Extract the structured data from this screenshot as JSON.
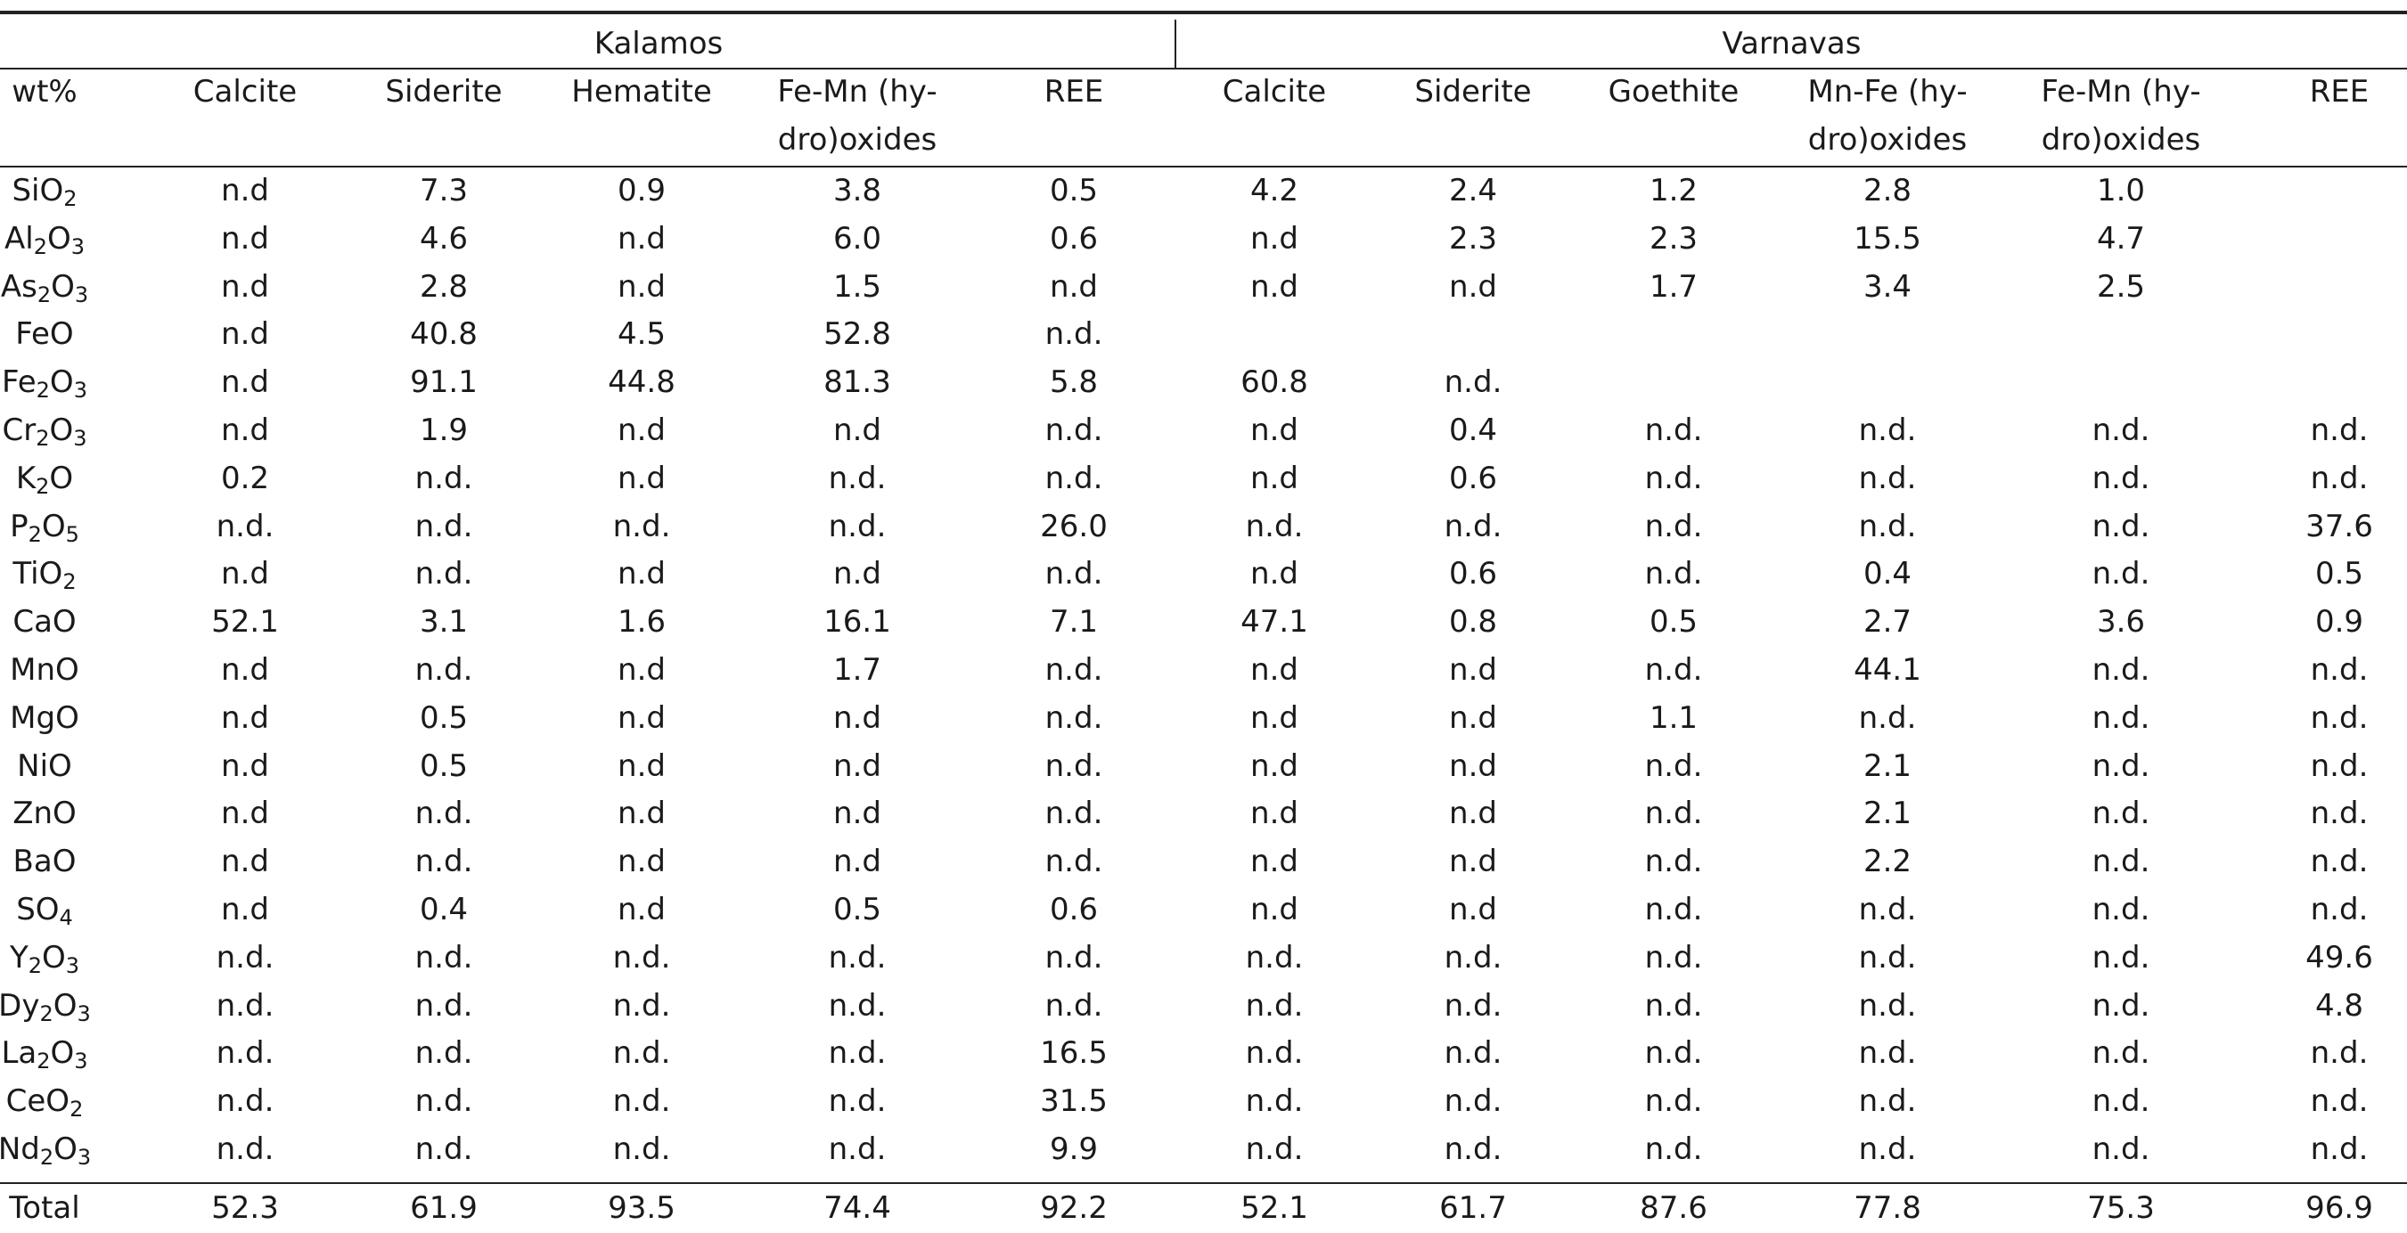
{
  "table": {
    "groups": [
      "Kalamos",
      "Varnavas"
    ],
    "corner_label": "wt%",
    "columns": [
      [
        "Calcite"
      ],
      [
        "Siderite"
      ],
      [
        "Hematite"
      ],
      [
        "Fe-Mn (hy-",
        "dro)oxides"
      ],
      [
        "REE"
      ],
      [
        "Calcite"
      ],
      [
        "Siderite"
      ],
      [
        "Goethite"
      ],
      [
        "Mn-Fe (hy-",
        "dro)oxides"
      ],
      [
        "Fe-Mn (hy-",
        "dro)oxides"
      ],
      [
        "REE"
      ]
    ],
    "rows": [
      {
        "label": [
          [
            "Si",
            ""
          ],
          [
            "O",
            "2"
          ]
        ],
        "values": [
          "n.d",
          "7.3",
          "0.9",
          "3.8",
          "0.5",
          "4.2",
          "2.4",
          "1.2",
          "2.8",
          "1.0",
          ""
        ]
      },
      {
        "label": [
          [
            "Al",
            "2"
          ],
          [
            "O",
            "3"
          ]
        ],
        "values": [
          "n.d",
          "4.6",
          "n.d",
          "6.0",
          "0.6",
          "n.d",
          "2.3",
          "2.3",
          "15.5",
          "4.7",
          ""
        ]
      },
      {
        "label": [
          [
            "As",
            "2"
          ],
          [
            "O",
            "3"
          ]
        ],
        "values": [
          "n.d",
          "2.8",
          "n.d",
          "1.5",
          "n.d",
          "n.d",
          "n.d",
          "1.7",
          "3.4",
          "2.5",
          ""
        ]
      },
      {
        "label": [
          [
            "FeO",
            ""
          ]
        ],
        "values": [
          "n.d",
          "40.8",
          "4.5",
          "52.8",
          "n.d.",
          "",
          "",
          "",
          "",
          "",
          ""
        ]
      },
      {
        "label": [
          [
            "Fe",
            "2"
          ],
          [
            "O",
            "3"
          ]
        ],
        "values": [
          "n.d",
          "91.1",
          "44.8",
          "81.3",
          "5.8",
          "60.8",
          "n.d.",
          "",
          "",
          "",
          ""
        ]
      },
      {
        "label": [
          [
            "Cr",
            "2"
          ],
          [
            "O",
            "3"
          ]
        ],
        "values": [
          "n.d",
          "1.9",
          "n.d",
          "n.d",
          "n.d.",
          "n.d",
          "0.4",
          "n.d.",
          "n.d.",
          "n.d.",
          "n.d."
        ]
      },
      {
        "label": [
          [
            "K",
            "2"
          ],
          [
            "O",
            ""
          ]
        ],
        "values": [
          "0.2",
          "n.d.",
          "n.d",
          "n.d.",
          "n.d.",
          "n.d",
          "0.6",
          "n.d.",
          "n.d.",
          "n.d.",
          "n.d."
        ]
      },
      {
        "label": [
          [
            "P",
            "2"
          ],
          [
            "O",
            "5"
          ]
        ],
        "values": [
          "n.d.",
          "n.d.",
          "n.d.",
          "n.d.",
          "26.0",
          "n.d.",
          "n.d.",
          "n.d.",
          "n.d.",
          "n.d.",
          "37.6"
        ]
      },
      {
        "label": [
          [
            "TiO",
            "2"
          ]
        ],
        "values": [
          "n.d",
          "n.d.",
          "n.d",
          "n.d",
          "n.d.",
          "n.d",
          "0.6",
          "n.d.",
          "0.4",
          "n.d.",
          "0.5"
        ]
      },
      {
        "label": [
          [
            "CaO",
            ""
          ]
        ],
        "values": [
          "52.1",
          "3.1",
          "1.6",
          "16.1",
          "7.1",
          "47.1",
          "0.8",
          "0.5",
          "2.7",
          "3.6",
          "0.9"
        ]
      },
      {
        "label": [
          [
            "MnO",
            ""
          ]
        ],
        "values": [
          "n.d",
          "n.d.",
          "n.d",
          "1.7",
          "n.d.",
          "n.d",
          "n.d",
          "n.d.",
          "44.1",
          "n.d.",
          "n.d."
        ]
      },
      {
        "label": [
          [
            "MgO",
            ""
          ]
        ],
        "values": [
          "n.d",
          "0.5",
          "n.d",
          "n.d",
          "n.d.",
          "n.d",
          "n.d",
          "1.1",
          "n.d.",
          "n.d.",
          "n.d."
        ]
      },
      {
        "label": [
          [
            "NiO",
            ""
          ]
        ],
        "values": [
          "n.d",
          "0.5",
          "n.d",
          "n.d",
          "n.d.",
          "n.d",
          "n.d",
          "n.d.",
          "2.1",
          "n.d.",
          "n.d."
        ]
      },
      {
        "label": [
          [
            "ZnO",
            ""
          ]
        ],
        "values": [
          "n.d",
          "n.d.",
          "n.d",
          "n.d",
          "n.d.",
          "n.d",
          "n.d",
          "n.d.",
          "2.1",
          "n.d.",
          "n.d."
        ]
      },
      {
        "label": [
          [
            "BaO",
            ""
          ]
        ],
        "values": [
          "n.d",
          "n.d.",
          "n.d",
          "n.d",
          "n.d.",
          "n.d",
          "n.d",
          "n.d.",
          "2.2",
          "n.d.",
          "n.d."
        ]
      },
      {
        "label": [
          [
            "SO",
            "4"
          ]
        ],
        "values": [
          "n.d",
          "0.4",
          "n.d",
          "0.5",
          "0.6",
          "n.d",
          "n.d",
          "n.d.",
          "n.d.",
          "n.d.",
          "n.d."
        ]
      },
      {
        "label": [
          [
            "Y",
            "2"
          ],
          [
            "O",
            "3"
          ]
        ],
        "values": [
          "n.d.",
          "n.d.",
          "n.d.",
          "n.d.",
          "n.d.",
          "n.d.",
          "n.d.",
          "n.d.",
          "n.d.",
          "n.d.",
          "49.6"
        ]
      },
      {
        "label": [
          [
            "Dy",
            "2"
          ],
          [
            "O",
            "3"
          ]
        ],
        "values": [
          "n.d.",
          "n.d.",
          "n.d.",
          "n.d.",
          "n.d.",
          "n.d.",
          "n.d.",
          "n.d.",
          "n.d.",
          "n.d.",
          "4.8"
        ]
      },
      {
        "label": [
          [
            "La",
            "2"
          ],
          [
            "O",
            "3"
          ]
        ],
        "values": [
          "n.d.",
          "n.d.",
          "n.d.",
          "n.d.",
          "16.5",
          "n.d.",
          "n.d.",
          "n.d.",
          "n.d.",
          "n.d.",
          "n.d."
        ]
      },
      {
        "label": [
          [
            "CeO",
            "2"
          ]
        ],
        "values": [
          "n.d.",
          "n.d.",
          "n.d.",
          "n.d.",
          "31.5",
          "n.d.",
          "n.d.",
          "n.d.",
          "n.d.",
          "n.d.",
          "n.d."
        ]
      },
      {
        "label": [
          [
            "Nd",
            "2"
          ],
          [
            "O",
            "3"
          ]
        ],
        "values": [
          "n.d.",
          "n.d.",
          "n.d.",
          "n.d.",
          "9.9",
          "n.d.",
          "n.d.",
          "n.d.",
          "n.d.",
          "n.d.",
          "n.d."
        ]
      }
    ],
    "total": {
      "label": "Total",
      "values": [
        "52.3",
        "61.9",
        "93.5",
        "74.4",
        "92.2",
        "52.1",
        "61.7",
        "87.6",
        "77.8",
        "75.3",
        "96.9"
      ]
    }
  }
}
